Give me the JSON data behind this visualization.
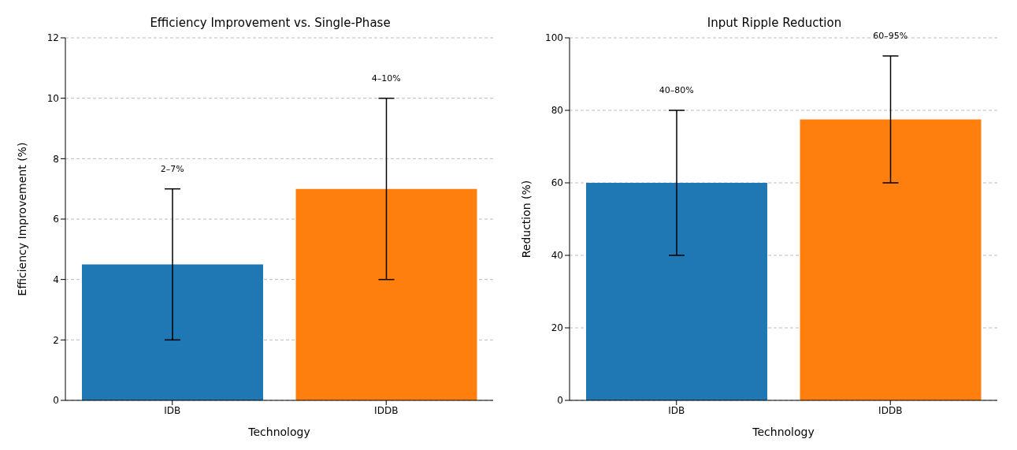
{
  "chart_data": [
    {
      "type": "bar",
      "title": "Efficiency Improvement vs. Single-Phase",
      "xlabel": "Technology",
      "ylabel": "Efficiency Improvement (%)",
      "categories": [
        "IDB",
        "IDDB"
      ],
      "values": [
        4.5,
        7
      ],
      "colors": [
        "#1f77b4",
        "#ff7f0e"
      ],
      "errors": [
        [
          2,
          7
        ],
        [
          4,
          10
        ]
      ],
      "annotations": [
        {
          "text": "2–7%",
          "x": "IDB",
          "y": 7
        },
        {
          "text": "4–10%",
          "x": "IDDB",
          "y": 10
        }
      ],
      "ylim": [
        0,
        12
      ],
      "yticks": [
        0,
        2,
        4,
        6,
        8,
        10,
        12
      ],
      "grid": "y"
    },
    {
      "type": "bar",
      "title": "Input Ripple Reduction",
      "xlabel": "Technology",
      "ylabel": "Reduction (%)",
      "categories": [
        "IDB",
        "IDDB"
      ],
      "values": [
        60,
        77.5
      ],
      "colors": [
        "#1f77b4",
        "#ff7f0e"
      ],
      "errors": [
        [
          40,
          80
        ],
        [
          60,
          95
        ]
      ],
      "annotations": [
        {
          "text": "40–80%",
          "x": "IDB",
          "y": 80
        },
        {
          "text": "60–95%",
          "x": "IDDB",
          "y": 95
        }
      ],
      "ylim": [
        0,
        100
      ],
      "yticks": [
        0,
        20,
        40,
        60,
        80,
        100
      ],
      "grid": "y"
    }
  ]
}
